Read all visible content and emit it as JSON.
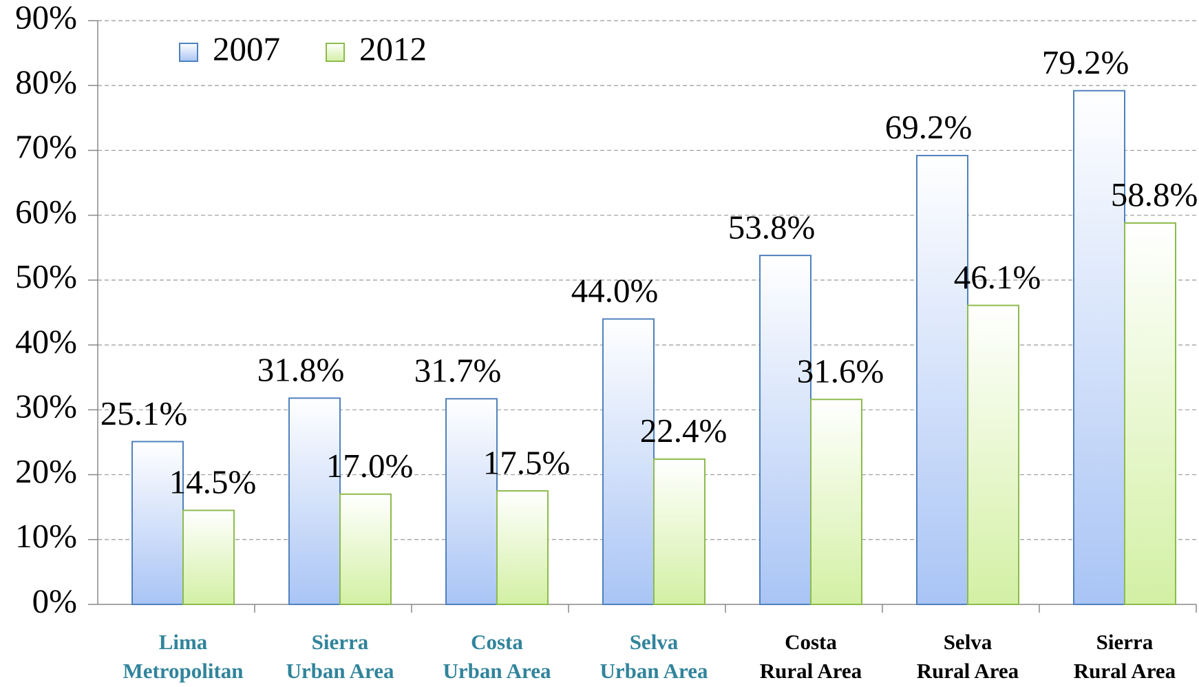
{
  "chart_data": {
    "type": "bar",
    "categories": [
      [
        "Lima",
        "Metropolitan"
      ],
      [
        "Sierra",
        "Urban Area"
      ],
      [
        "Costa",
        "Urban Area"
      ],
      [
        "Selva",
        "Urban Area"
      ],
      [
        "Costa",
        "Rural Area"
      ],
      [
        "Selva",
        "Rural Area"
      ],
      [
        "Sierra",
        "Rural Area"
      ]
    ],
    "category_colors": [
      "#31849b",
      "#31849b",
      "#31849b",
      "#31849b",
      "#000000",
      "#000000",
      "#000000"
    ],
    "series": [
      {
        "name": "2007",
        "color": "#a9c4f5",
        "stroke": "#4f81bd",
        "values": [
          25.1,
          31.8,
          31.7,
          44.0,
          53.8,
          69.2,
          79.2
        ],
        "value_labels": [
          "25.1%",
          "31.8%",
          "31.7%",
          "44.0%",
          "53.8%",
          "69.2%",
          "79.2%"
        ]
      },
      {
        "name": "2012",
        "color": "#d3f0a4",
        "stroke": "#8dbb4c",
        "values": [
          14.5,
          17.0,
          17.5,
          22.4,
          31.6,
          46.1,
          58.8
        ],
        "value_labels": [
          "14.5%",
          "17.0%",
          "17.5%",
          "22.4%",
          "31.6%",
          "46.1%",
          "58.8%"
        ]
      }
    ],
    "ylim": [
      0,
      90
    ],
    "yticks": [
      {
        "value": 0,
        "label": "0%"
      },
      {
        "value": 10,
        "label": "10%"
      },
      {
        "value": 20,
        "label": "20%"
      },
      {
        "value": 30,
        "label": "30%"
      },
      {
        "value": 40,
        "label": "40%"
      },
      {
        "value": 50,
        "label": "50%"
      },
      {
        "value": 60,
        "label": "60%"
      },
      {
        "value": 70,
        "label": "70%"
      },
      {
        "value": 80,
        "label": "80%"
      },
      {
        "value": 90,
        "label": "90%"
      }
    ],
    "grid": true,
    "legend": "top-left"
  }
}
